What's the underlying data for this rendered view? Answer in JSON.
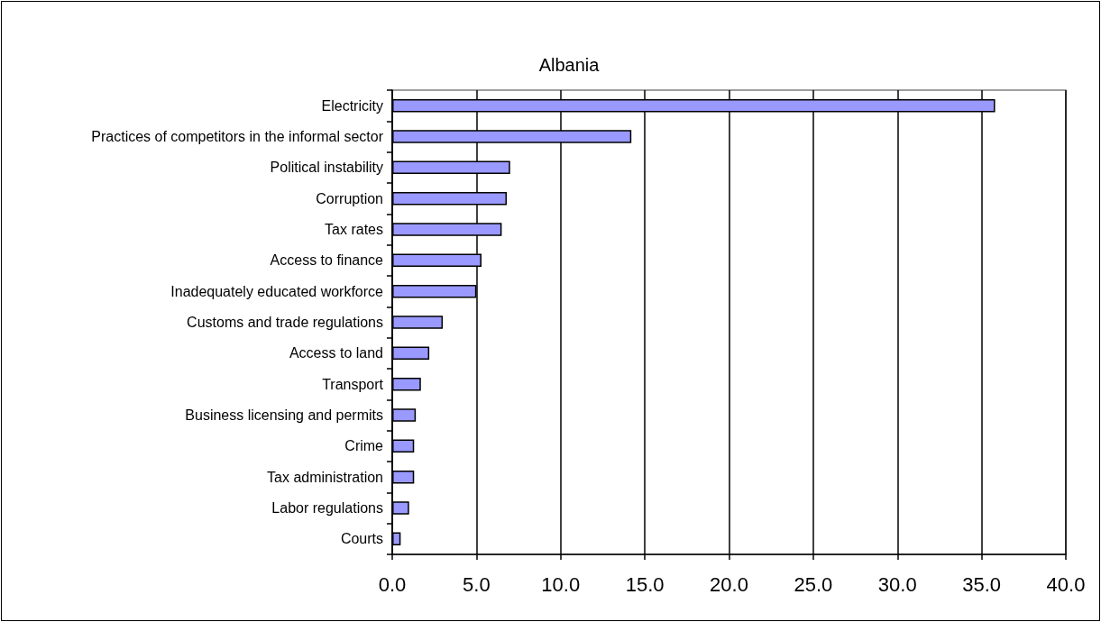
{
  "chart_data": {
    "type": "bar",
    "orientation": "horizontal",
    "title": "Albania",
    "categories": [
      "Electricity",
      "Practices of competitors in the informal sector",
      "Political instability",
      "Corruption",
      "Tax rates",
      "Access to finance",
      "Inadequately educated workforce",
      "Customs and trade regulations",
      "Access to land",
      "Transport",
      "Business licensing and permits",
      "Crime",
      "Tax administration",
      "Labor regulations",
      "Courts"
    ],
    "values": [
      35.8,
      14.2,
      7.0,
      6.8,
      6.5,
      5.3,
      5.0,
      3.0,
      2.2,
      1.7,
      1.4,
      1.3,
      1.3,
      1.0,
      0.5
    ],
    "color": "#9999ff",
    "xlim": [
      0,
      40
    ],
    "xticks": [
      {
        "value": 0,
        "label": "0.0"
      },
      {
        "value": 5,
        "label": "5.0"
      },
      {
        "value": 10,
        "label": "10.0"
      },
      {
        "value": 15,
        "label": "15.0"
      },
      {
        "value": 20,
        "label": "20.0"
      },
      {
        "value": 25,
        "label": "25.0"
      },
      {
        "value": 30,
        "label": "30.0"
      },
      {
        "value": 35,
        "label": "35.0"
      },
      {
        "value": 40,
        "label": "40.0"
      }
    ],
    "grid": "x"
  }
}
